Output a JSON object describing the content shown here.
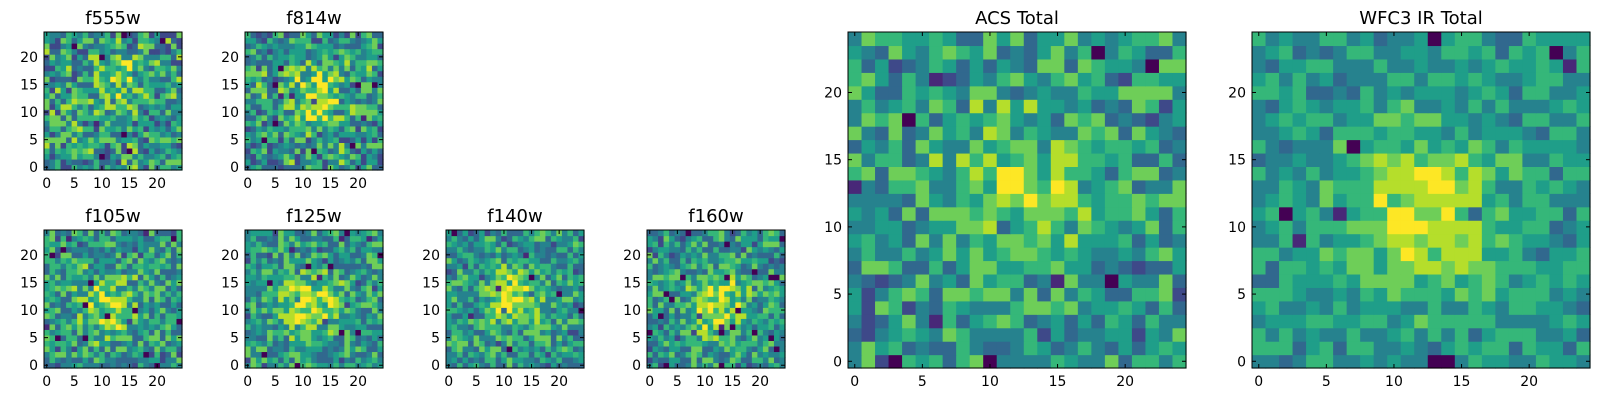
{
  "chart_data": [
    {
      "type": "heatmap",
      "title": "f555w",
      "xlim": [
        -0.5,
        24.5
      ],
      "ylim": [
        -0.5,
        24.5
      ],
      "xticks": [
        0,
        5,
        10,
        15,
        20
      ],
      "yticks": [
        0,
        5,
        10,
        15,
        20
      ],
      "colormap": "viridis",
      "grid": false,
      "legend": "none",
      "peak": [
        13,
        16
      ],
      "core": 0.18,
      "noise": 0.38,
      "seed": 11
    },
    {
      "type": "heatmap",
      "title": "f814w",
      "xlim": [
        -0.5,
        24.5
      ],
      "ylim": [
        -0.5,
        24.5
      ],
      "xticks": [
        0,
        5,
        10,
        15,
        20
      ],
      "yticks": [
        0,
        5,
        10,
        15,
        20
      ],
      "colormap": "viridis",
      "grid": false,
      "legend": "none",
      "peak": [
        12,
        13
      ],
      "core": 0.32,
      "noise": 0.36,
      "seed": 23
    },
    {
      "type": "heatmap",
      "title": "f105w",
      "xlim": [
        -0.5,
        24.5
      ],
      "ylim": [
        -0.5,
        24.5
      ],
      "xticks": [
        0,
        5,
        10,
        15,
        20
      ],
      "yticks": [
        0,
        5,
        10,
        15,
        20
      ],
      "colormap": "viridis",
      "grid": false,
      "legend": "none",
      "peak": [
        11,
        11
      ],
      "core": 0.3,
      "noise": 0.32,
      "seed": 37
    },
    {
      "type": "heatmap",
      "title": "f125w",
      "xlim": [
        -0.5,
        24.5
      ],
      "ylim": [
        -0.5,
        24.5
      ],
      "xticks": [
        0,
        5,
        10,
        15,
        20
      ],
      "yticks": [
        0,
        5,
        10,
        15,
        20
      ],
      "colormap": "viridis",
      "grid": false,
      "legend": "none",
      "peak": [
        11,
        11
      ],
      "core": 0.34,
      "noise": 0.3,
      "seed": 41
    },
    {
      "type": "heatmap",
      "title": "f140w",
      "xlim": [
        -0.5,
        24.5
      ],
      "ylim": [
        -0.5,
        24.5
      ],
      "xticks": [
        0,
        5,
        10,
        15,
        20
      ],
      "yticks": [
        0,
        5,
        10,
        15,
        20
      ],
      "colormap": "viridis",
      "grid": false,
      "legend": "none",
      "peak": [
        12,
        12
      ],
      "core": 0.34,
      "noise": 0.3,
      "seed": 53
    },
    {
      "type": "heatmap",
      "title": "f160w",
      "xlim": [
        -0.5,
        24.5
      ],
      "ylim": [
        -0.5,
        24.5
      ],
      "xticks": [
        0,
        5,
        10,
        15,
        20
      ],
      "yticks": [
        0,
        5,
        10,
        15,
        20
      ],
      "colormap": "viridis",
      "grid": false,
      "legend": "none",
      "peak": [
        12,
        11
      ],
      "core": 0.36,
      "noise": 0.3,
      "seed": 67
    },
    {
      "type": "heatmap",
      "title": "ACS Total",
      "xlim": [
        -0.5,
        24.5
      ],
      "ylim": [
        -0.5,
        24.5
      ],
      "xticks": [
        0,
        5,
        10,
        15,
        20
      ],
      "yticks": [
        0,
        5,
        10,
        15,
        20
      ],
      "colormap": "viridis",
      "grid": false,
      "legend": "none",
      "peak": [
        12,
        13
      ],
      "core": 0.3,
      "noise": 0.3,
      "seed": 79
    },
    {
      "type": "heatmap",
      "title": "WFC3 IR Total",
      "xlim": [
        -0.5,
        24.5
      ],
      "ylim": [
        -0.5,
        24.5
      ],
      "xticks": [
        0,
        5,
        10,
        15,
        20
      ],
      "yticks": [
        0,
        5,
        10,
        15,
        20
      ],
      "colormap": "viridis",
      "grid": false,
      "legend": "none",
      "peak": [
        12,
        11
      ],
      "core": 0.4,
      "noise": 0.2,
      "seed": 97
    }
  ],
  "colors": {
    "viridis": [
      "#440154",
      "#482878",
      "#3e4989",
      "#31688e",
      "#26828e",
      "#1f9e89",
      "#35b779",
      "#6ece58",
      "#b5de2b",
      "#fde725"
    ],
    "axis": "#000000",
    "background": "#ffffff"
  }
}
